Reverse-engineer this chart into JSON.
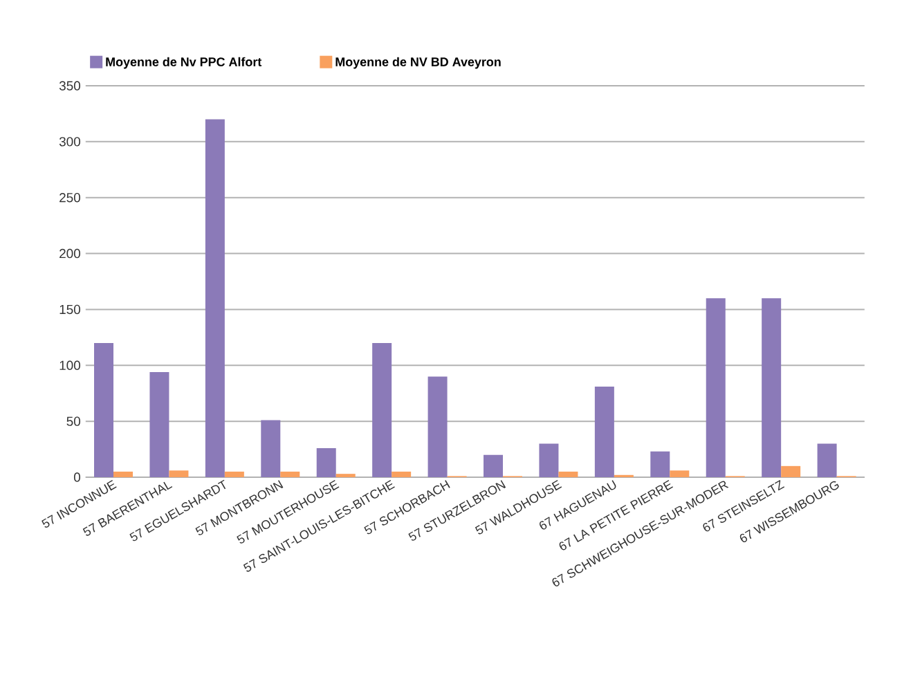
{
  "chart_data": {
    "type": "bar",
    "categories": [
      "57 INCONNUE",
      "57 BAERENTHAL",
      "57 EGUELSHARDT",
      "57 MONTBRONN",
      "57 MOUTERHOUSE",
      "57 SAINT-LOUIS-LES-BITCHE",
      "57 SCHORBACH",
      "57 STURZELBRON",
      "57 WALDHOUSE",
      "67 HAGUENAU",
      "67 LA PETITE PIERRE",
      "67 SCHWEIGHOUSE-SUR-MODER",
      "67 STEINSELTZ",
      "67 WISSEMBOURG"
    ],
    "series": [
      {
        "name": "Moyenne de Nv PPC Alfort",
        "color": "#8b7ab8",
        "values": [
          120,
          94,
          320,
          51,
          26,
          120,
          90,
          20,
          30,
          81,
          23,
          160,
          160,
          30
        ]
      },
      {
        "name": "Moyenne de NV BD Aveyron",
        "color": "#f9a05e",
        "values": [
          5,
          6,
          5,
          5,
          3,
          5,
          1,
          1,
          5,
          2,
          6,
          1,
          10,
          1
        ]
      }
    ],
    "ylim": [
      0,
      350
    ],
    "yticks": [
      0,
      50,
      100,
      150,
      200,
      250,
      300,
      350
    ],
    "grid": "y",
    "legend": "top"
  }
}
